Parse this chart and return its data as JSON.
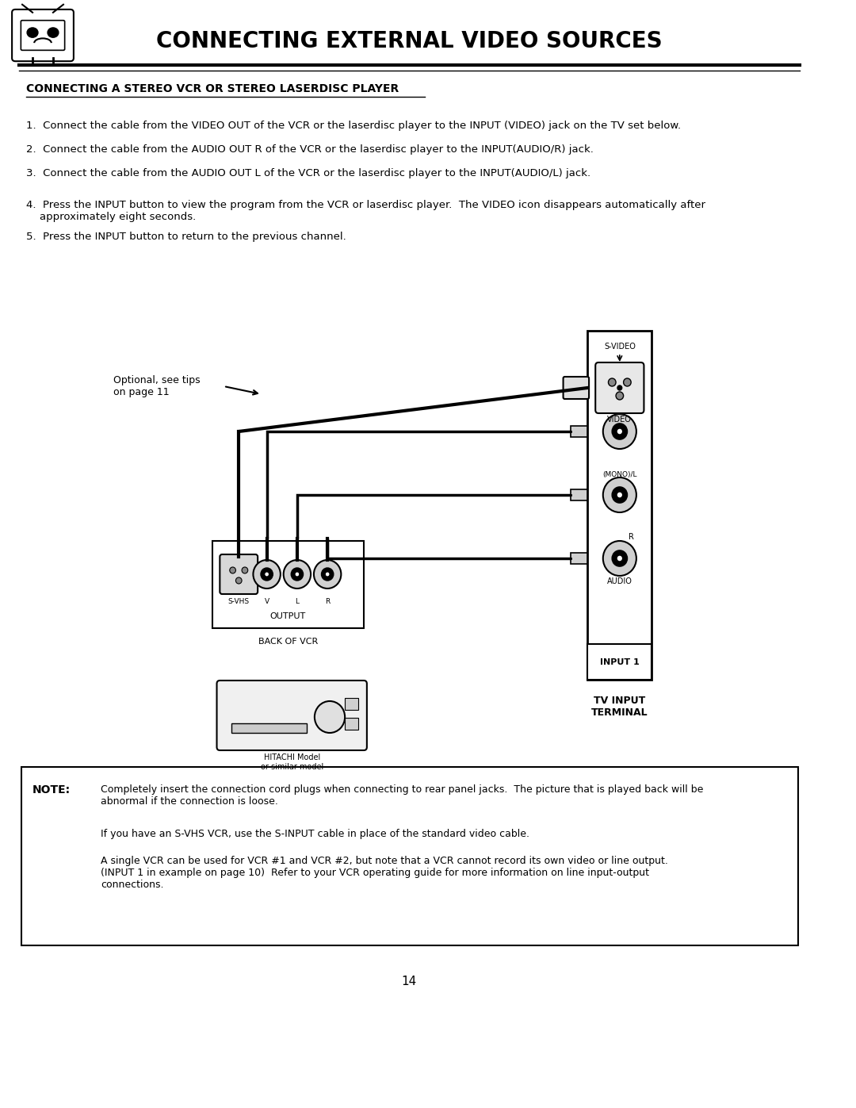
{
  "title": "CONNECTING EXTERNAL VIDEO SOURCES",
  "subtitle": "CONNECTING A STEREO VCR OR STEREO LASERDISC PLAYER",
  "steps": [
    "1.  Connect the cable from the VIDEO OUT of the VCR or the laserdisc player to the INPUT (VIDEO) jack on the TV set below.",
    "2.  Connect the cable from the AUDIO OUT R of the VCR or the laserdisc player to the INPUT(AUDIO/R) jack.",
    "3.  Connect the cable from the AUDIO OUT L of the VCR or the laserdisc player to the INPUT(AUDIO/L) jack.",
    "4.  Press the INPUT button to view the program from the VCR or laserdisc player.  The VIDEO icon disappears automatically after\n    approximately eight seconds.",
    "5.  Press the INPUT button to return to the previous channel."
  ],
  "optional_label": "Optional, see tips\non page 11",
  "back_of_vcr_label": "BACK OF VCR",
  "output_label": "OUTPUT",
  "svhs_label": "S-VHS  V    L    R",
  "tv_input_label": "TV INPUT\nTERMINAL",
  "input1_label": "INPUT 1",
  "svideo_label": "S-VIDEO",
  "video_label": "VIDEO",
  "mono_label": "(MONO)/L",
  "r_label": "R",
  "audio_label": "AUDIO",
  "hitachi_label": "HITACHI Model\nor similar model",
  "note_label": "NOTE:",
  "note_text1": "Completely insert the connection cord plugs when connecting to rear panel jacks.  The picture that is played back will be\nabnormal if the connection is loose.",
  "note_text2": "If you have an S-VHS VCR, use the S-INPUT cable in place of the standard video cable.",
  "note_text3": "A single VCR can be used for VCR #1 and VCR #2, but note that a VCR cannot record its own video or line output.\n(INPUT 1 in example on page 10)  Refer to your VCR operating guide for more information on line input-output\nconnections.",
  "page_number": "14",
  "bg_color": "#ffffff",
  "text_color": "#000000",
  "header_bg": "#ffffff"
}
